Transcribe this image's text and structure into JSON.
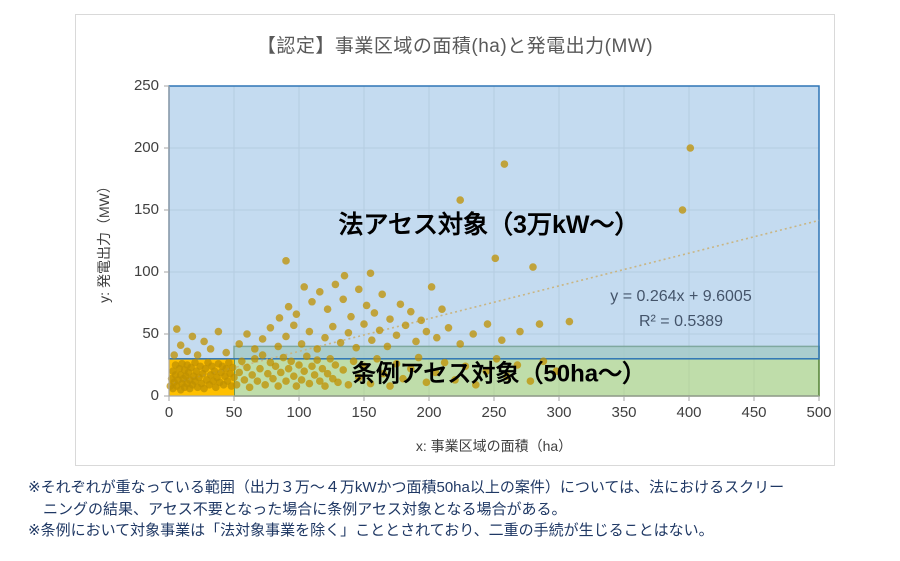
{
  "chart_data": {
    "type": "scatter",
    "title": "【認定】事業区域の面積(ha)と発電出力(MW)",
    "xlabel": "x: 事業区域の面積（ha）",
    "ylabel": "y: 発電出力（MW）",
    "xlim": [
      0,
      500
    ],
    "ylim": [
      0,
      250
    ],
    "x_ticks": [
      0,
      50,
      100,
      150,
      200,
      250,
      300,
      350,
      400,
      450,
      500
    ],
    "y_ticks": [
      0,
      50,
      100,
      150,
      200,
      250
    ],
    "grid": true,
    "legend": false,
    "point_color": "#BF9000",
    "colors": {
      "grid": "#D9D9D9",
      "axis": "#A6A6A6",
      "title": "#595959",
      "tick_label": "#404040",
      "annotation_text": "#000000",
      "equation_text": "#44546A"
    },
    "annotations": {
      "law_label": "法アセス対象（3万kW～）",
      "ordinance_label": "条例アセス対象（50ha～）"
    },
    "trendline": {
      "equation": "y = 0.264x + 9.6005",
      "r2_label": "R² = 0.5389",
      "slope": 0.264,
      "intercept": 9.6005,
      "color": "#C9B583",
      "style": "dotted"
    },
    "regions": [
      {
        "name": "ordinance-assessment",
        "label": "条例アセス対象（50ha～）",
        "x": [
          50,
          500
        ],
        "y": [
          0,
          40
        ],
        "fill": "#A9D18E",
        "opacity": 0.75,
        "border": "#538135",
        "border_width": 1.5
      },
      {
        "name": "non-assessment",
        "label": "",
        "x": [
          0,
          50
        ],
        "y": [
          0,
          30
        ],
        "fill": "#FFC000",
        "opacity": 1,
        "border": "none",
        "border_width": 0
      },
      {
        "name": "law-assessment",
        "label": "法アセス対象（3万kW～）",
        "x": [
          0,
          500
        ],
        "y": [
          30,
          250
        ],
        "fill": "#9DC3E6",
        "opacity": 0.6,
        "border": "#2E75B6",
        "border_width": 1.5
      }
    ],
    "points": [
      [
        1,
        8
      ],
      [
        2,
        14
      ],
      [
        3,
        6
      ],
      [
        3,
        20
      ],
      [
        4,
        11
      ],
      [
        5,
        17
      ],
      [
        5,
        25
      ],
      [
        6,
        8
      ],
      [
        7,
        13
      ],
      [
        8,
        22
      ],
      [
        9,
        5
      ],
      [
        9,
        17
      ],
      [
        10,
        10
      ],
      [
        10,
        26
      ],
      [
        11,
        14
      ],
      [
        12,
        7
      ],
      [
        12,
        21
      ],
      [
        13,
        16
      ],
      [
        14,
        10
      ],
      [
        14,
        25
      ],
      [
        15,
        19
      ],
      [
        16,
        6
      ],
      [
        16,
        13
      ],
      [
        17,
        23
      ],
      [
        18,
        9
      ],
      [
        19,
        16
      ],
      [
        20,
        12
      ],
      [
        20,
        27
      ],
      [
        21,
        20
      ],
      [
        22,
        7
      ],
      [
        23,
        15
      ],
      [
        24,
        24
      ],
      [
        25,
        10
      ],
      [
        26,
        18
      ],
      [
        27,
        6
      ],
      [
        28,
        22
      ],
      [
        29,
        13
      ],
      [
        30,
        27
      ],
      [
        31,
        9
      ],
      [
        32,
        17
      ],
      [
        33,
        24
      ],
      [
        34,
        12
      ],
      [
        35,
        20
      ],
      [
        36,
        7
      ],
      [
        37,
        15
      ],
      [
        38,
        26
      ],
      [
        39,
        11
      ],
      [
        40,
        19
      ],
      [
        41,
        24
      ],
      [
        42,
        9
      ],
      [
        43,
        16
      ],
      [
        44,
        22
      ],
      [
        45,
        12
      ],
      [
        46,
        27
      ],
      [
        47,
        18
      ],
      [
        48,
        8
      ],
      [
        49,
        23
      ],
      [
        50,
        15
      ],
      [
        4,
        33
      ],
      [
        6,
        54
      ],
      [
        9,
        41
      ],
      [
        14,
        36
      ],
      [
        18,
        48
      ],
      [
        22,
        33
      ],
      [
        27,
        44
      ],
      [
        32,
        38
      ],
      [
        38,
        52
      ],
      [
        44,
        35
      ],
      [
        52,
        9
      ],
      [
        54,
        19
      ],
      [
        56,
        28
      ],
      [
        58,
        13
      ],
      [
        60,
        23
      ],
      [
        62,
        7
      ],
      [
        64,
        17
      ],
      [
        66,
        30
      ],
      [
        68,
        12
      ],
      [
        70,
        22
      ],
      [
        72,
        33
      ],
      [
        74,
        9
      ],
      [
        76,
        18
      ],
      [
        78,
        27
      ],
      [
        80,
        14
      ],
      [
        82,
        24
      ],
      [
        84,
        8
      ],
      [
        86,
        19
      ],
      [
        88,
        31
      ],
      [
        90,
        12
      ],
      [
        92,
        22
      ],
      [
        94,
        28
      ],
      [
        96,
        16
      ],
      [
        98,
        8
      ],
      [
        100,
        25
      ],
      [
        102,
        13
      ],
      [
        104,
        20
      ],
      [
        106,
        32
      ],
      [
        108,
        10
      ],
      [
        110,
        24
      ],
      [
        112,
        17
      ],
      [
        114,
        29
      ],
      [
        116,
        12
      ],
      [
        118,
        22
      ],
      [
        120,
        8
      ],
      [
        122,
        18
      ],
      [
        124,
        30
      ],
      [
        126,
        14
      ],
      [
        128,
        25
      ],
      [
        130,
        11
      ],
      [
        134,
        21
      ],
      [
        138,
        9
      ],
      [
        142,
        28
      ],
      [
        146,
        15
      ],
      [
        150,
        24
      ],
      [
        155,
        10
      ],
      [
        160,
        30
      ],
      [
        165,
        18
      ],
      [
        170,
        8
      ],
      [
        175,
        26
      ],
      [
        180,
        14
      ],
      [
        186,
        22
      ],
      [
        192,
        31
      ],
      [
        198,
        11
      ],
      [
        205,
        19
      ],
      [
        212,
        27
      ],
      [
        220,
        13
      ],
      [
        228,
        24
      ],
      [
        236,
        9
      ],
      [
        244,
        20
      ],
      [
        252,
        30
      ],
      [
        260,
        16
      ],
      [
        268,
        25
      ],
      [
        278,
        12
      ],
      [
        288,
        28
      ],
      [
        298,
        20
      ],
      [
        54,
        42
      ],
      [
        60,
        50
      ],
      [
        66,
        38
      ],
      [
        72,
        46
      ],
      [
        78,
        55
      ],
      [
        84,
        40
      ],
      [
        90,
        48
      ],
      [
        96,
        57
      ],
      [
        102,
        42
      ],
      [
        108,
        52
      ],
      [
        114,
        38
      ],
      [
        120,
        47
      ],
      [
        126,
        56
      ],
      [
        132,
        43
      ],
      [
        138,
        51
      ],
      [
        144,
        39
      ],
      [
        150,
        58
      ],
      [
        156,
        45
      ],
      [
        162,
        53
      ],
      [
        168,
        40
      ],
      [
        175,
        49
      ],
      [
        182,
        57
      ],
      [
        190,
        44
      ],
      [
        198,
        52
      ],
      [
        206,
        47
      ],
      [
        215,
        55
      ],
      [
        224,
        42
      ],
      [
        234,
        50
      ],
      [
        245,
        58
      ],
      [
        256,
        45
      ],
      [
        270,
        52
      ],
      [
        285,
        58
      ],
      [
        85,
        63
      ],
      [
        92,
        72
      ],
      [
        98,
        66
      ],
      [
        104,
        88
      ],
      [
        110,
        76
      ],
      [
        116,
        84
      ],
      [
        122,
        70
      ],
      [
        128,
        90
      ],
      [
        134,
        78
      ],
      [
        140,
        64
      ],
      [
        146,
        86
      ],
      [
        152,
        73
      ],
      [
        158,
        67
      ],
      [
        164,
        82
      ],
      [
        170,
        62
      ],
      [
        178,
        74
      ],
      [
        186,
        68
      ],
      [
        194,
        61
      ],
      [
        202,
        88
      ],
      [
        210,
        70
      ],
      [
        308,
        60
      ],
      [
        90,
        109
      ],
      [
        135,
        97
      ],
      [
        155,
        99
      ],
      [
        224,
        158
      ],
      [
        251,
        111
      ],
      [
        258,
        187
      ],
      [
        280,
        104
      ],
      [
        395,
        150
      ],
      [
        401,
        200
      ]
    ]
  },
  "footnotes": {
    "lines": [
      "※それぞれが重なっている範囲（出力３万～４万kWかつ面積50ha以上の案件）については、法におけるスクリー",
      "　ニングの結果、アセス不要となった場合に条例アセス対象となる場合がある。",
      "※条例において対象事業は「法対象事業を除く」こととされており、二重の手続が生じることはない。"
    ]
  }
}
